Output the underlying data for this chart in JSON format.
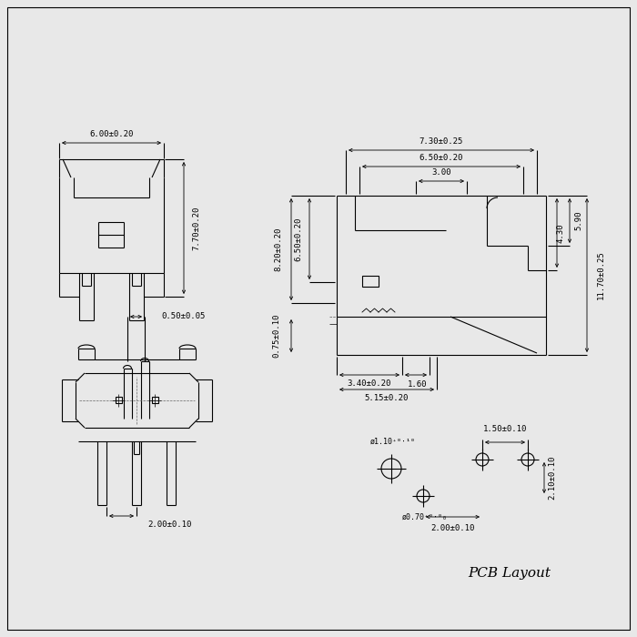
{
  "bg_color": "#e8e8e8",
  "line_color": "#000000",
  "title": "PCB Layout",
  "font_size_dim": 6.5,
  "font_size_title": 11
}
